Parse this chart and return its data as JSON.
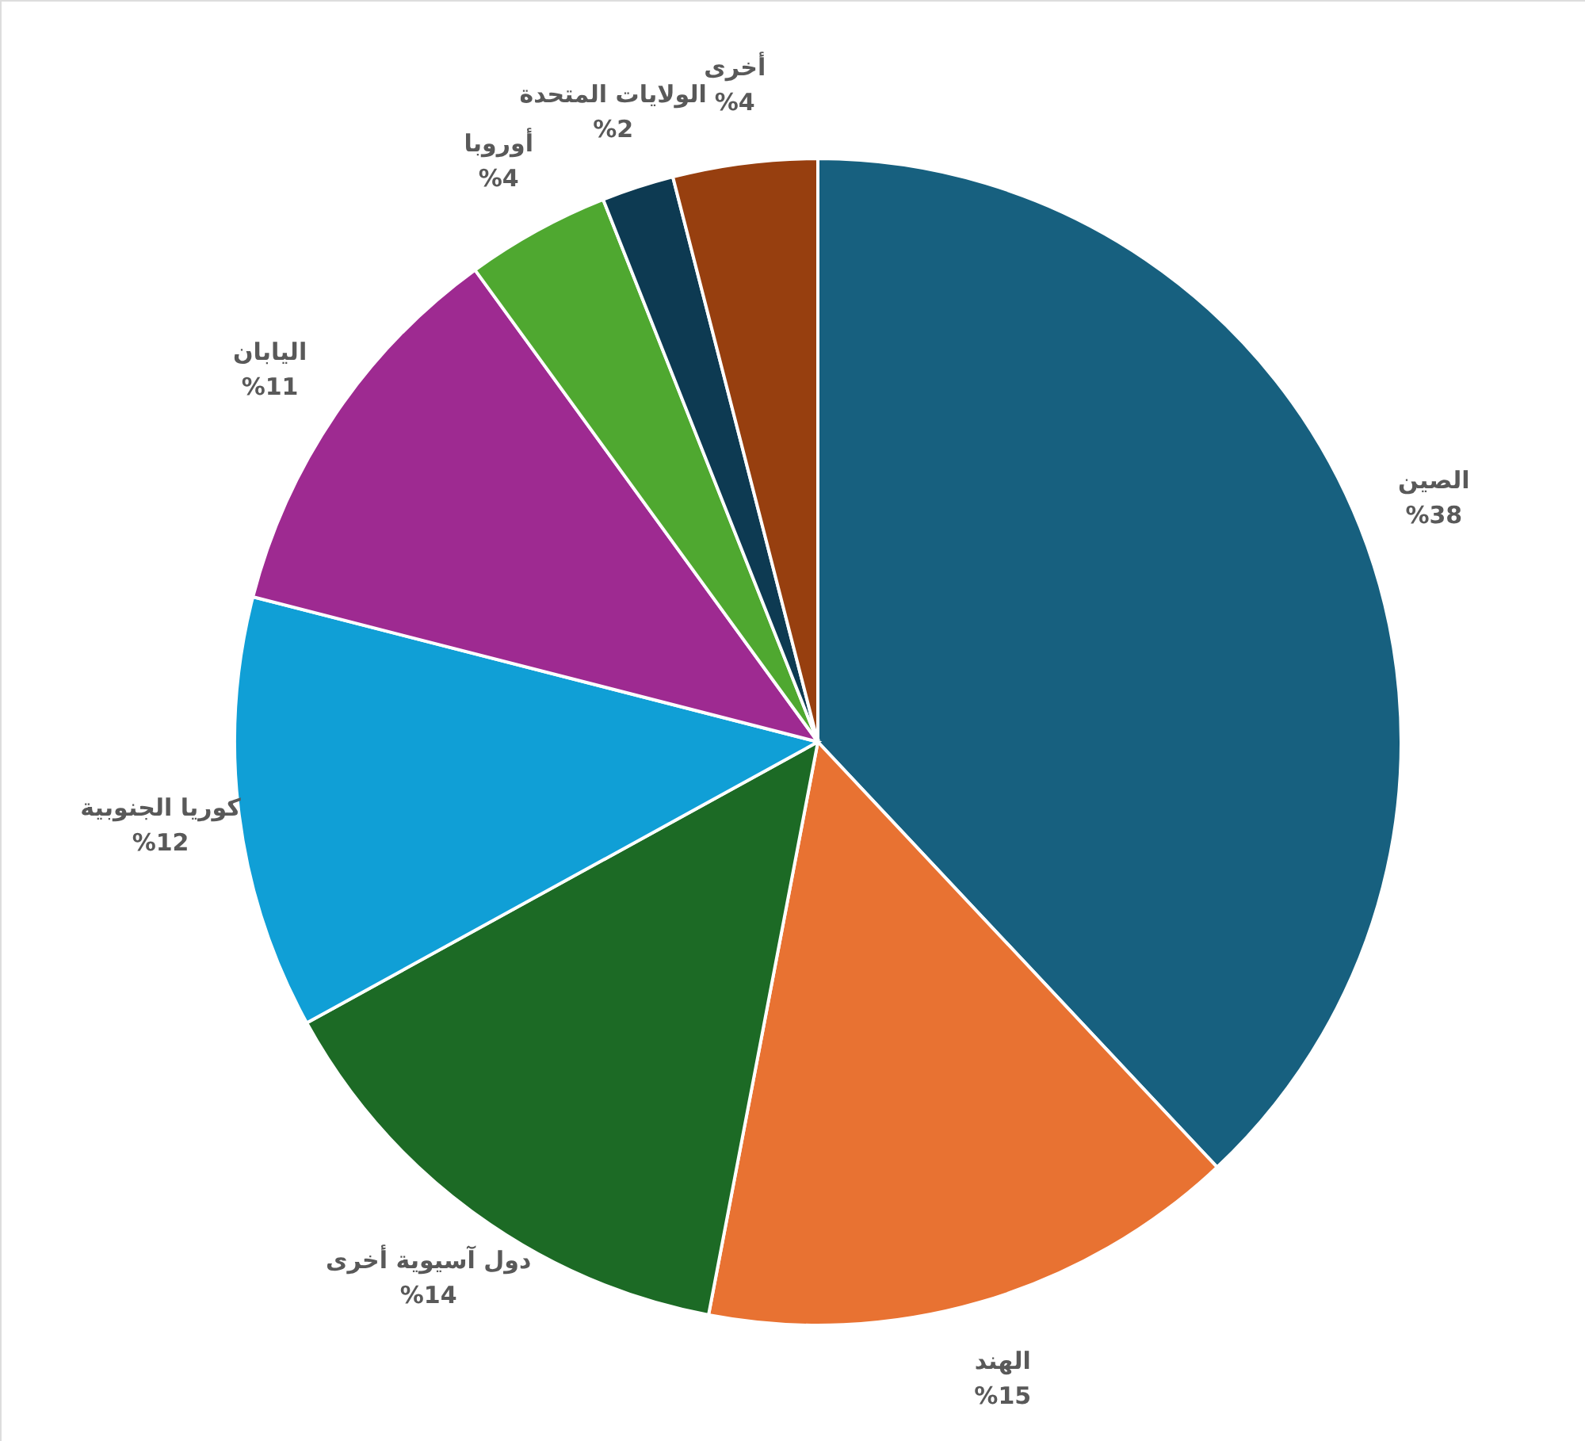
{
  "chart_data": {
    "type": "pie",
    "categories": [
      "الصين",
      "الهند",
      "دول آسيوية أخرى",
      "كوريا الجنوبية",
      "اليابان",
      "أوروبا",
      "الولايات المتحدة",
      "أخرى"
    ],
    "values": [
      38,
      15,
      14,
      12,
      11,
      4,
      2,
      4
    ],
    "value_labels": [
      "%38",
      "%15",
      "%14",
      "%12",
      "%11",
      "%4",
      "%2",
      "%4"
    ],
    "colors": [
      "#17607f",
      "#e87232",
      "#1c6a25",
      "#109fd6",
      "#9e2a91",
      "#4fa830",
      "#0d3a52",
      "#973f0f"
    ]
  }
}
